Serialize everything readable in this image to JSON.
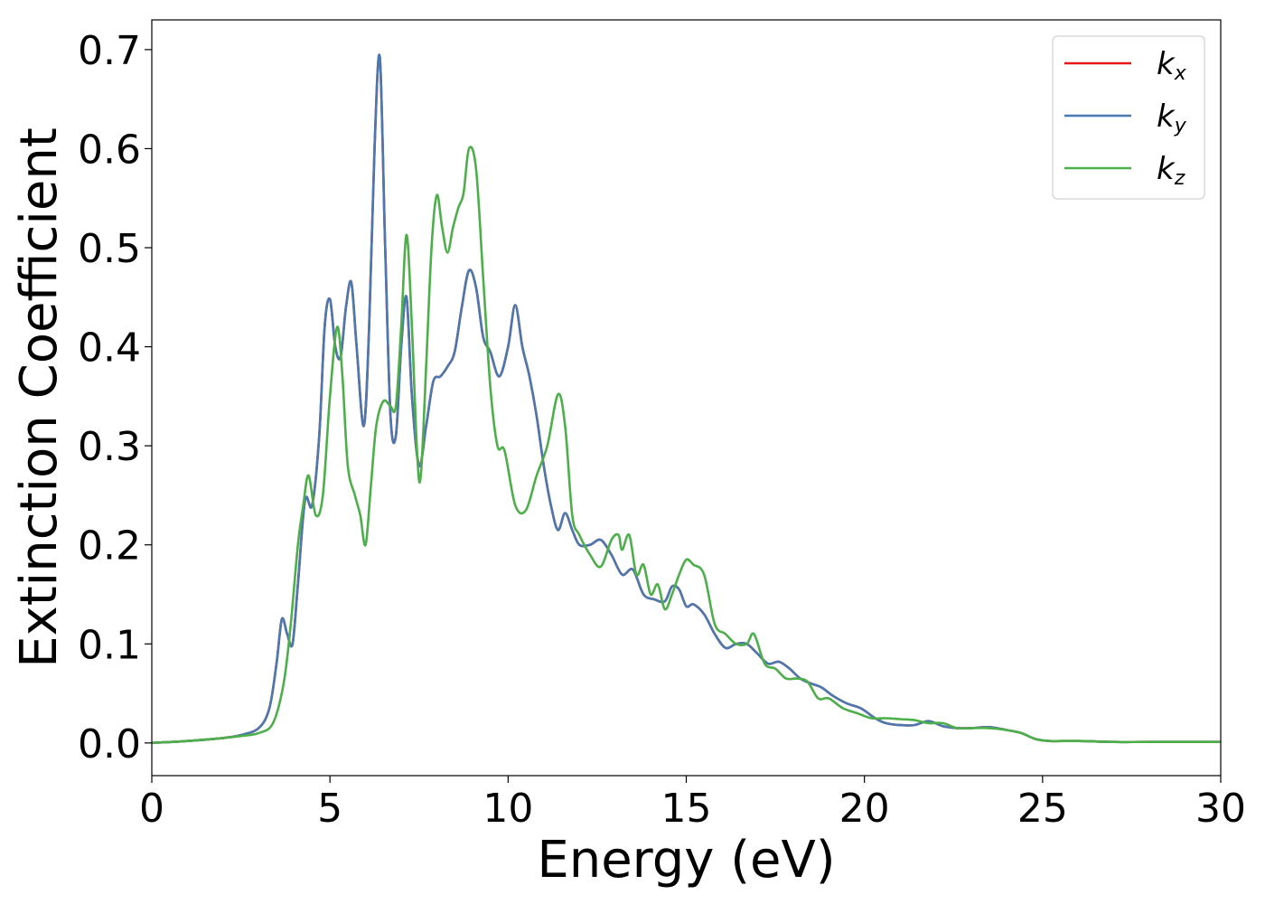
{
  "chart_data": {
    "type": "line",
    "title": "",
    "xlabel": "Energy (eV)",
    "ylabel": "Extinction Coefficient",
    "xlim": [
      0,
      30
    ],
    "ylim": [
      -0.033,
      0.73
    ],
    "xticks": [
      0,
      5,
      10,
      15,
      20,
      25,
      30
    ],
    "xtick_labels": [
      "0",
      "5",
      "10",
      "15",
      "20",
      "25",
      "30"
    ],
    "yticks": [
      0.0,
      0.1,
      0.2,
      0.3,
      0.4,
      0.5,
      0.6,
      0.7
    ],
    "ytick_labels": [
      "0.0",
      "0.1",
      "0.2",
      "0.3",
      "0.4",
      "0.5",
      "0.6",
      "0.7"
    ],
    "grid": false,
    "legend_position": "top-right",
    "series": [
      {
        "name": "k",
        "sub": "x",
        "color": "#e41a1c",
        "x": [
          0,
          1,
          2,
          2.5,
          3,
          3.3,
          3.5,
          3.65,
          3.8,
          3.95,
          4.1,
          4.3,
          4.5,
          4.7,
          4.85,
          5.0,
          5.15,
          5.3,
          5.45,
          5.6,
          5.75,
          5.95,
          6.1,
          6.25,
          6.4,
          6.55,
          6.7,
          6.85,
          7.0,
          7.15,
          7.3,
          7.5,
          7.7,
          7.9,
          8.1,
          8.3,
          8.5,
          8.7,
          8.9,
          9.1,
          9.3,
          9.5,
          9.75,
          10.0,
          10.2,
          10.4,
          10.6,
          10.8,
          11.0,
          11.2,
          11.4,
          11.6,
          11.8,
          12.0,
          12.3,
          12.6,
          12.9,
          13.2,
          13.5,
          13.8,
          14.1,
          14.4,
          14.6,
          14.8,
          15.0,
          15.2,
          15.5,
          15.8,
          16.1,
          16.4,
          16.7,
          17.0,
          17.3,
          17.6,
          17.9,
          18.2,
          18.5,
          18.8,
          19.1,
          19.5,
          19.9,
          20.3,
          20.6,
          21.0,
          21.4,
          21.8,
          22.2,
          22.6,
          23.0,
          23.5,
          24.0,
          24.4,
          24.8,
          25.2,
          26,
          27,
          28,
          30
        ],
        "y": [
          0.0,
          0.002,
          0.005,
          0.008,
          0.015,
          0.035,
          0.08,
          0.125,
          0.11,
          0.1,
          0.16,
          0.245,
          0.24,
          0.31,
          0.42,
          0.448,
          0.4,
          0.39,
          0.44,
          0.465,
          0.4,
          0.32,
          0.42,
          0.6,
          0.692,
          0.5,
          0.33,
          0.31,
          0.4,
          0.45,
          0.35,
          0.28,
          0.32,
          0.365,
          0.37,
          0.38,
          0.395,
          0.44,
          0.477,
          0.46,
          0.41,
          0.395,
          0.37,
          0.4,
          0.442,
          0.4,
          0.37,
          0.33,
          0.28,
          0.24,
          0.215,
          0.232,
          0.215,
          0.2,
          0.2,
          0.205,
          0.19,
          0.17,
          0.175,
          0.15,
          0.145,
          0.143,
          0.158,
          0.155,
          0.138,
          0.14,
          0.13,
          0.11,
          0.096,
          0.1,
          0.1,
          0.09,
          0.08,
          0.082,
          0.075,
          0.065,
          0.06,
          0.056,
          0.048,
          0.04,
          0.035,
          0.025,
          0.02,
          0.018,
          0.018,
          0.022,
          0.017,
          0.015,
          0.015,
          0.016,
          0.013,
          0.01,
          0.004,
          0.002,
          0.002,
          0.001,
          0.001,
          0.001
        ]
      },
      {
        "name": "k",
        "sub": "y",
        "color": "#4a78b0",
        "x": [
          0,
          1,
          2,
          2.5,
          3,
          3.3,
          3.5,
          3.65,
          3.8,
          3.95,
          4.1,
          4.3,
          4.5,
          4.7,
          4.85,
          5.0,
          5.15,
          5.3,
          5.45,
          5.6,
          5.75,
          5.95,
          6.1,
          6.25,
          6.4,
          6.55,
          6.7,
          6.85,
          7.0,
          7.15,
          7.3,
          7.5,
          7.7,
          7.9,
          8.1,
          8.3,
          8.5,
          8.7,
          8.9,
          9.1,
          9.3,
          9.5,
          9.75,
          10.0,
          10.2,
          10.4,
          10.6,
          10.8,
          11.0,
          11.2,
          11.4,
          11.6,
          11.8,
          12.0,
          12.3,
          12.6,
          12.9,
          13.2,
          13.5,
          13.8,
          14.1,
          14.4,
          14.6,
          14.8,
          15.0,
          15.2,
          15.5,
          15.8,
          16.1,
          16.4,
          16.7,
          17.0,
          17.3,
          17.6,
          17.9,
          18.2,
          18.5,
          18.8,
          19.1,
          19.5,
          19.9,
          20.3,
          20.6,
          21.0,
          21.4,
          21.8,
          22.2,
          22.6,
          23.0,
          23.5,
          24.0,
          24.4,
          24.8,
          25.2,
          26,
          27,
          28,
          30
        ],
        "y": [
          0.0,
          0.002,
          0.005,
          0.008,
          0.015,
          0.035,
          0.08,
          0.125,
          0.11,
          0.1,
          0.16,
          0.245,
          0.24,
          0.31,
          0.42,
          0.448,
          0.4,
          0.39,
          0.44,
          0.465,
          0.4,
          0.32,
          0.42,
          0.6,
          0.692,
          0.5,
          0.33,
          0.31,
          0.4,
          0.45,
          0.35,
          0.28,
          0.32,
          0.365,
          0.37,
          0.38,
          0.395,
          0.44,
          0.477,
          0.46,
          0.41,
          0.395,
          0.37,
          0.4,
          0.442,
          0.4,
          0.37,
          0.33,
          0.28,
          0.24,
          0.215,
          0.232,
          0.215,
          0.2,
          0.2,
          0.205,
          0.19,
          0.17,
          0.175,
          0.15,
          0.145,
          0.143,
          0.158,
          0.155,
          0.138,
          0.14,
          0.13,
          0.11,
          0.096,
          0.1,
          0.1,
          0.09,
          0.08,
          0.082,
          0.075,
          0.065,
          0.06,
          0.056,
          0.048,
          0.04,
          0.035,
          0.025,
          0.02,
          0.018,
          0.018,
          0.022,
          0.017,
          0.015,
          0.015,
          0.016,
          0.013,
          0.01,
          0.004,
          0.002,
          0.002,
          0.001,
          0.001,
          0.001
        ]
      },
      {
        "name": "k",
        "sub": "z",
        "color": "#4daf4a",
        "x": [
          0,
          1,
          2,
          2.5,
          3,
          3.4,
          3.7,
          3.9,
          4.1,
          4.25,
          4.4,
          4.6,
          4.8,
          5.0,
          5.2,
          5.35,
          5.5,
          5.7,
          5.85,
          6.0,
          6.15,
          6.3,
          6.5,
          6.7,
          6.85,
          7.0,
          7.15,
          7.3,
          7.45,
          7.55,
          7.7,
          7.85,
          8.0,
          8.15,
          8.3,
          8.45,
          8.6,
          8.75,
          8.9,
          9.1,
          9.3,
          9.5,
          9.7,
          9.9,
          10.2,
          10.5,
          10.8,
          11.1,
          11.4,
          11.6,
          11.8,
          12.0,
          12.3,
          12.6,
          12.9,
          13.1,
          13.2,
          13.4,
          13.6,
          13.8,
          14.0,
          14.2,
          14.4,
          14.6,
          14.8,
          15.0,
          15.2,
          15.5,
          15.8,
          16.1,
          16.4,
          16.7,
          16.9,
          17.2,
          17.5,
          17.8,
          18.1,
          18.4,
          18.7,
          19.0,
          19.4,
          19.8,
          20.2,
          20.6,
          21.0,
          21.4,
          21.8,
          22.2,
          22.6,
          23.0,
          23.5,
          24.0,
          24.4,
          24.8,
          25.2,
          26,
          27,
          28,
          30
        ],
        "y": [
          0.0,
          0.002,
          0.005,
          0.007,
          0.01,
          0.02,
          0.06,
          0.12,
          0.2,
          0.24,
          0.27,
          0.23,
          0.25,
          0.35,
          0.42,
          0.37,
          0.28,
          0.25,
          0.23,
          0.2,
          0.26,
          0.32,
          0.345,
          0.34,
          0.34,
          0.42,
          0.513,
          0.42,
          0.29,
          0.27,
          0.38,
          0.5,
          0.553,
          0.52,
          0.495,
          0.52,
          0.54,
          0.555,
          0.6,
          0.58,
          0.47,
          0.36,
          0.3,
          0.295,
          0.24,
          0.235,
          0.27,
          0.3,
          0.352,
          0.32,
          0.23,
          0.21,
          0.19,
          0.178,
          0.205,
          0.21,
          0.195,
          0.21,
          0.17,
          0.18,
          0.15,
          0.16,
          0.135,
          0.15,
          0.17,
          0.185,
          0.18,
          0.17,
          0.12,
          0.11,
          0.1,
          0.1,
          0.11,
          0.08,
          0.075,
          0.065,
          0.065,
          0.062,
          0.045,
          0.045,
          0.035,
          0.03,
          0.025,
          0.025,
          0.024,
          0.023,
          0.02,
          0.02,
          0.015,
          0.015,
          0.015,
          0.013,
          0.01,
          0.004,
          0.002,
          0.002,
          0.001,
          0.001,
          0.001
        ]
      }
    ]
  }
}
